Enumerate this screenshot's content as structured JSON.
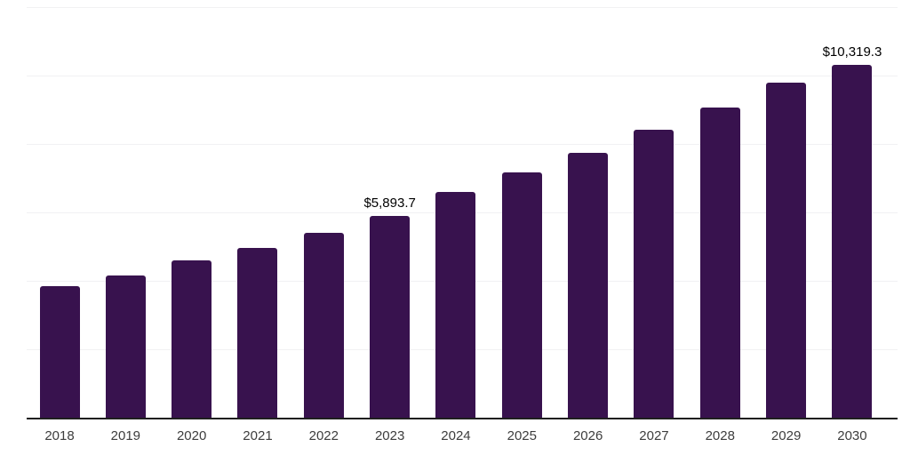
{
  "chart_data": {
    "type": "bar",
    "title": "",
    "xlabel": "",
    "ylabel": "",
    "categories": [
      "2018",
      "2019",
      "2020",
      "2021",
      "2022",
      "2023",
      "2024",
      "2025",
      "2026",
      "2027",
      "2028",
      "2029",
      "2030"
    ],
    "values": [
      3840,
      4160,
      4600,
      4950,
      5410,
      5893.7,
      6600,
      7170,
      7740,
      8410,
      9060,
      9790,
      10319.3
    ],
    "data_labels": [
      "",
      "",
      "",
      "",
      "",
      "$5,893.7",
      "",
      "",
      "",
      "",
      "",
      "",
      "$10,319.3"
    ],
    "ylim": [
      0,
      12000
    ],
    "gridline_interval": 2000,
    "grid": "horizontal-light",
    "legend": "none",
    "y_tick_labels_shown": false,
    "bar_color": "#38124e",
    "axis_line_color": "#1f1f1f",
    "gridline_color": "#f1f1f3",
    "tick_label_color": "#3d3d3d",
    "data_label_color": "#000000"
  }
}
